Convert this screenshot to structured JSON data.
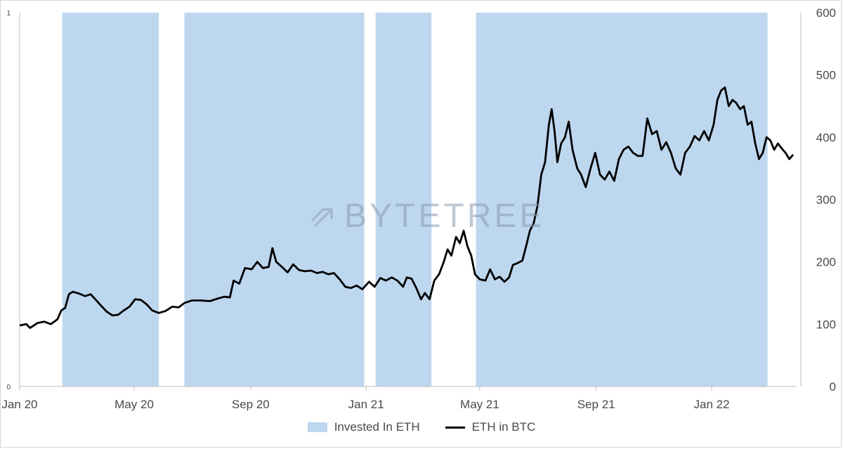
{
  "chart_data": {
    "type": "line",
    "x_ticks": [
      "Jan 20",
      "May 20",
      "Sep 20",
      "Jan 21",
      "May 21",
      "Sep 21",
      "Jan 22"
    ],
    "x_range": [
      "2020-01-01",
      "2022-03-31"
    ],
    "y_left": {
      "ticks": [
        "0",
        "1"
      ],
      "range": [
        0,
        1
      ]
    },
    "y_right": {
      "ticks": [
        "0",
        "100",
        "200",
        "300",
        "400",
        "500",
        "600"
      ],
      "range": [
        0,
        600
      ]
    },
    "legend_placement": "bottom",
    "grid": false,
    "series": [
      {
        "name": "Invested In ETH",
        "kind": "shaded-regions",
        "axis": "left",
        "color": "#bdd7ee",
        "regions": [
          [
            "2020-02-15",
            "2020-05-27"
          ],
          [
            "2020-06-23",
            "2020-12-30"
          ],
          [
            "2021-01-11",
            "2021-03-11"
          ],
          [
            "2021-04-27",
            "2022-03-01"
          ]
        ]
      },
      {
        "name": "ETH in BTC",
        "kind": "line",
        "axis": "right",
        "color": "#000000",
        "points": [
          [
            "2020-01-01",
            98
          ],
          [
            "2020-01-08",
            100
          ],
          [
            "2020-01-12",
            94
          ],
          [
            "2020-01-20",
            102
          ],
          [
            "2020-01-27",
            104
          ],
          [
            "2020-02-03",
            100
          ],
          [
            "2020-02-10",
            108
          ],
          [
            "2020-02-14",
            122
          ],
          [
            "2020-02-18",
            126
          ],
          [
            "2020-02-22",
            148
          ],
          [
            "2020-02-26",
            152
          ],
          [
            "2020-03-04",
            149
          ],
          [
            "2020-03-10",
            145
          ],
          [
            "2020-03-16",
            148
          ],
          [
            "2020-03-22",
            138
          ],
          [
            "2020-03-28",
            128
          ],
          [
            "2020-04-02",
            120
          ],
          [
            "2020-04-08",
            114
          ],
          [
            "2020-04-14",
            115
          ],
          [
            "2020-04-20",
            122
          ],
          [
            "2020-04-26",
            128
          ],
          [
            "2020-05-02",
            140
          ],
          [
            "2020-05-08",
            139
          ],
          [
            "2020-05-14",
            132
          ],
          [
            "2020-05-20",
            122
          ],
          [
            "2020-05-27",
            118
          ],
          [
            "2020-06-03",
            121
          ],
          [
            "2020-06-10",
            128
          ],
          [
            "2020-06-17",
            127
          ],
          [
            "2020-06-23",
            134
          ],
          [
            "2020-07-01",
            138
          ],
          [
            "2020-07-10",
            138
          ],
          [
            "2020-07-20",
            137
          ],
          [
            "2020-07-28",
            141
          ],
          [
            "2020-08-04",
            144
          ],
          [
            "2020-08-10",
            143
          ],
          [
            "2020-08-14",
            170
          ],
          [
            "2020-08-20",
            165
          ],
          [
            "2020-08-26",
            190
          ],
          [
            "2020-09-02",
            188
          ],
          [
            "2020-09-08",
            200
          ],
          [
            "2020-09-14",
            190
          ],
          [
            "2020-09-20",
            192
          ],
          [
            "2020-09-24",
            222
          ],
          [
            "2020-09-28",
            200
          ],
          [
            "2020-10-04",
            192
          ],
          [
            "2020-10-10",
            183
          ],
          [
            "2020-10-16",
            196
          ],
          [
            "2020-10-22",
            187
          ],
          [
            "2020-10-28",
            185
          ],
          [
            "2020-11-04",
            186
          ],
          [
            "2020-11-10",
            182
          ],
          [
            "2020-11-16",
            184
          ],
          [
            "2020-11-22",
            180
          ],
          [
            "2020-11-28",
            182
          ],
          [
            "2020-12-04",
            172
          ],
          [
            "2020-12-10",
            160
          ],
          [
            "2020-12-16",
            158
          ],
          [
            "2020-12-22",
            162
          ],
          [
            "2020-12-28",
            156
          ],
          [
            "2021-01-04",
            168
          ],
          [
            "2021-01-10",
            160
          ],
          [
            "2021-01-16",
            174
          ],
          [
            "2021-01-22",
            170
          ],
          [
            "2021-01-28",
            175
          ],
          [
            "2021-02-03",
            170
          ],
          [
            "2021-02-09",
            160
          ],
          [
            "2021-02-13",
            175
          ],
          [
            "2021-02-18",
            173
          ],
          [
            "2021-02-23",
            158
          ],
          [
            "2021-02-28",
            140
          ],
          [
            "2021-03-04",
            150
          ],
          [
            "2021-03-09",
            140
          ],
          [
            "2021-03-14",
            170
          ],
          [
            "2021-03-19",
            180
          ],
          [
            "2021-03-24",
            200
          ],
          [
            "2021-03-28",
            220
          ],
          [
            "2021-04-01",
            210
          ],
          [
            "2021-04-06",
            240
          ],
          [
            "2021-04-10",
            230
          ],
          [
            "2021-04-14",
            250
          ],
          [
            "2021-04-18",
            225
          ],
          [
            "2021-04-22",
            210
          ],
          [
            "2021-04-26",
            180
          ],
          [
            "2021-05-01",
            172
          ],
          [
            "2021-05-07",
            170
          ],
          [
            "2021-05-12",
            188
          ],
          [
            "2021-05-17",
            172
          ],
          [
            "2021-05-22",
            176
          ],
          [
            "2021-05-27",
            168
          ],
          [
            "2021-06-01",
            175
          ],
          [
            "2021-06-05",
            195
          ],
          [
            "2021-06-10",
            198
          ],
          [
            "2021-06-15",
            202
          ],
          [
            "2021-06-19",
            225
          ],
          [
            "2021-06-23",
            250
          ],
          [
            "2021-06-27",
            262
          ],
          [
            "2021-07-01",
            290
          ],
          [
            "2021-07-05",
            340
          ],
          [
            "2021-07-09",
            360
          ],
          [
            "2021-07-13",
            420
          ],
          [
            "2021-07-16",
            445
          ],
          [
            "2021-07-19",
            410
          ],
          [
            "2021-07-22",
            360
          ],
          [
            "2021-07-26",
            390
          ],
          [
            "2021-07-30",
            400
          ],
          [
            "2021-08-03",
            425
          ],
          [
            "2021-08-07",
            380
          ],
          [
            "2021-08-12",
            350
          ],
          [
            "2021-08-16",
            340
          ],
          [
            "2021-08-21",
            320
          ],
          [
            "2021-08-26",
            350
          ],
          [
            "2021-08-31",
            375
          ],
          [
            "2021-09-05",
            340
          ],
          [
            "2021-09-10",
            332
          ],
          [
            "2021-09-15",
            345
          ],
          [
            "2021-09-20",
            330
          ],
          [
            "2021-09-25",
            365
          ],
          [
            "2021-09-30",
            380
          ],
          [
            "2021-10-05",
            385
          ],
          [
            "2021-10-10",
            375
          ],
          [
            "2021-10-15",
            370
          ],
          [
            "2021-10-20",
            370
          ],
          [
            "2021-10-25",
            430
          ],
          [
            "2021-10-30",
            405
          ],
          [
            "2021-11-04",
            410
          ],
          [
            "2021-11-09",
            380
          ],
          [
            "2021-11-14",
            392
          ],
          [
            "2021-11-19",
            375
          ],
          [
            "2021-11-24",
            350
          ],
          [
            "2021-11-29",
            340
          ],
          [
            "2021-12-04",
            375
          ],
          [
            "2021-12-09",
            385
          ],
          [
            "2021-12-14",
            402
          ],
          [
            "2021-12-19",
            395
          ],
          [
            "2021-12-24",
            410
          ],
          [
            "2021-12-29",
            395
          ],
          [
            "2022-01-03",
            420
          ],
          [
            "2022-01-07",
            460
          ],
          [
            "2022-01-11",
            475
          ],
          [
            "2022-01-15",
            480
          ],
          [
            "2022-01-19",
            450
          ],
          [
            "2022-01-23",
            460
          ],
          [
            "2022-01-27",
            455
          ],
          [
            "2022-01-31",
            445
          ],
          [
            "2022-02-04",
            450
          ],
          [
            "2022-02-08",
            420
          ],
          [
            "2022-02-12",
            425
          ],
          [
            "2022-02-16",
            390
          ],
          [
            "2022-02-20",
            365
          ],
          [
            "2022-02-24",
            375
          ],
          [
            "2022-02-28",
            400
          ],
          [
            "2022-03-04",
            395
          ],
          [
            "2022-03-08",
            380
          ],
          [
            "2022-03-12",
            390
          ],
          [
            "2022-03-16",
            382
          ],
          [
            "2022-03-20",
            375
          ],
          [
            "2022-03-24",
            365
          ],
          [
            "2022-03-28",
            372
          ]
        ]
      }
    ]
  },
  "watermark": {
    "text": "BYTETREE",
    "icon": "bytetree-arrow-logo"
  },
  "legend": {
    "area_label": "Invested In ETH",
    "line_label": "ETH in BTC"
  }
}
